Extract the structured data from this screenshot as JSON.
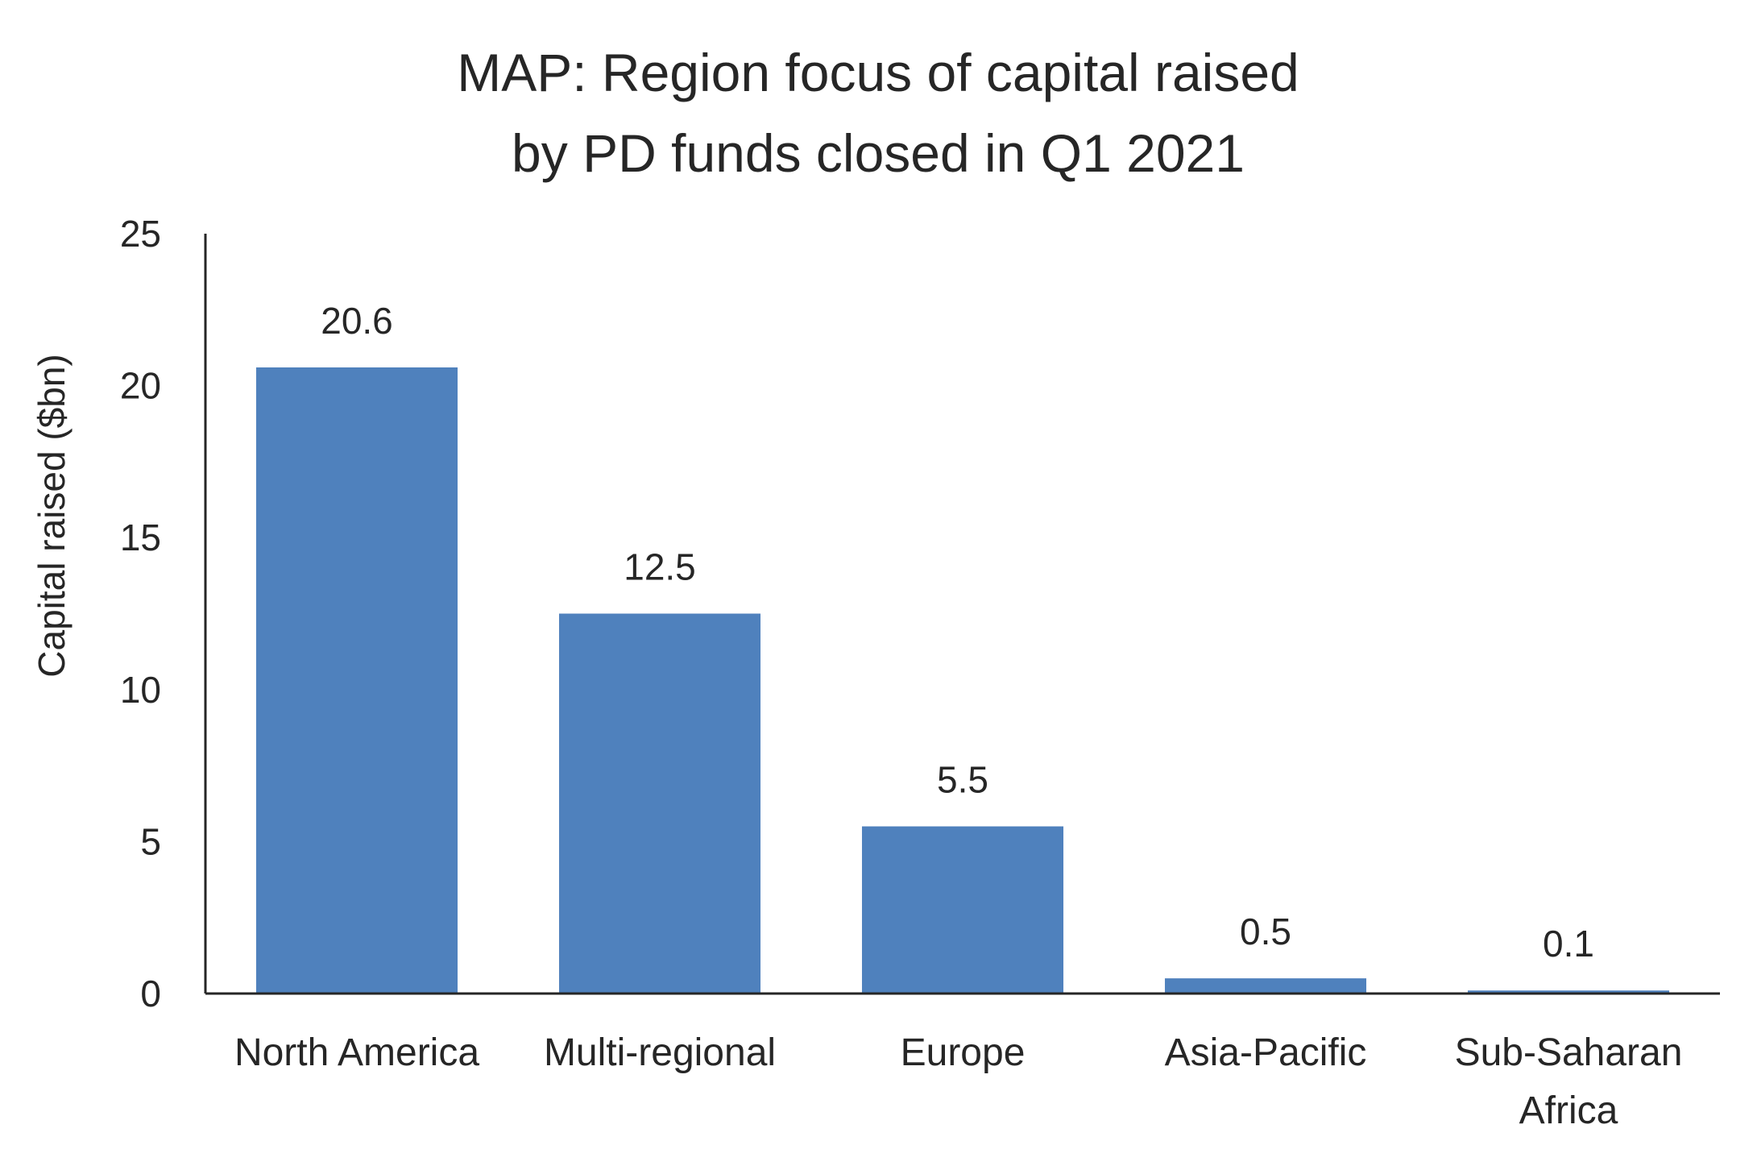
{
  "chart_data": {
    "type": "bar",
    "title_lines": [
      "MAP: Region focus of capital raised",
      "by PD funds closed in Q1 2021"
    ],
    "ylabel": "Capital raised ($bn)",
    "xlabel": "",
    "ylim": [
      0,
      25
    ],
    "yticks": [
      0,
      5,
      10,
      15,
      20,
      25
    ],
    "categories": [
      [
        "North America"
      ],
      [
        "Multi-regional"
      ],
      [
        "Europe"
      ],
      [
        "Asia-Pacific"
      ],
      [
        "Sub-Saharan",
        "Africa"
      ]
    ],
    "values": [
      20.6,
      12.5,
      5.5,
      0.5,
      0.1
    ],
    "data_labels": [
      "20.6",
      "12.5",
      "5.5",
      "0.5",
      "0.1"
    ],
    "bar_color": "#4F81BD",
    "grid": false,
    "legend": "none"
  }
}
